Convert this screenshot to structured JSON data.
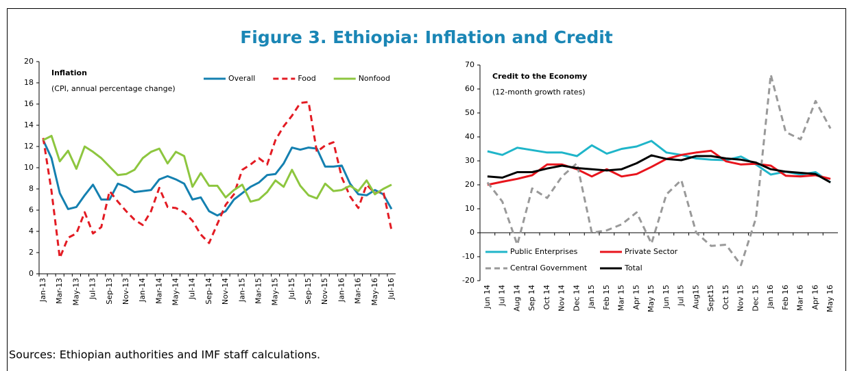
{
  "title": "Figure 3. Ethiopia: Inflation and Credit",
  "source": "Sources: Ethiopian authorities and IMF staff calculations.",
  "chart_data": [
    {
      "type": "line",
      "title": "Inflation",
      "subtitle": "(CPI, annual percentage change)",
      "categories": [
        "Jan-13",
        null,
        "Mar-13",
        null,
        "May-13",
        null,
        "Jul-13",
        null,
        "Sep-13",
        null,
        "Nov-13",
        null,
        "Jan-14",
        null,
        "Mar-14",
        null,
        "May-14",
        null,
        "Jul-14",
        null,
        "Sep-14",
        null,
        "Nov-14",
        null,
        "Jan-15",
        null,
        "Mar-15",
        null,
        "May-15",
        null,
        "Jul-15",
        null,
        "Sep-15",
        null,
        "Nov-15",
        null,
        "Jan-16",
        null,
        "Mar-16",
        null,
        "May-16",
        null,
        "Jul-16"
      ],
      "series": [
        {
          "name": "Overall",
          "color": "#1480b0",
          "dashed": false,
          "values": [
            12.6,
            10.9,
            7.6,
            6.1,
            6.3,
            7.4,
            8.4,
            7.0,
            7.0,
            8.5,
            8.2,
            7.7,
            7.8,
            7.9,
            8.9,
            9.2,
            8.9,
            8.5,
            7.0,
            7.2,
            5.9,
            5.5,
            5.9,
            7.0,
            7.6,
            8.2,
            8.6,
            9.3,
            9.4,
            10.4,
            11.9,
            11.7,
            11.9,
            11.8,
            10.1,
            10.1,
            10.2,
            8.5,
            7.5,
            7.4,
            7.9,
            7.5,
            6.1
          ]
        },
        {
          "name": "Food",
          "color": "#e31b23",
          "dashed": true,
          "values": [
            12.8,
            7.8,
            1.5,
            3.4,
            3.8,
            5.8,
            3.8,
            4.4,
            7.8,
            6.8,
            5.9,
            5.1,
            4.6,
            5.9,
            8.1,
            6.3,
            6.2,
            5.8,
            5.0,
            3.7,
            2.9,
            4.7,
            6.5,
            7.5,
            9.8,
            10.3,
            10.9,
            10.3,
            12.6,
            13.9,
            14.9,
            16.1,
            16.2,
            11.5,
            12.1,
            12.4,
            9.1,
            7.3,
            6.2,
            8.4,
            7.6,
            7.8,
            4.1
          ]
        },
        {
          "name": "Nonfood",
          "color": "#8dc63f",
          "dashed": false,
          "values": [
            12.6,
            13.0,
            10.6,
            11.6,
            9.9,
            12.0,
            11.5,
            10.9,
            10.1,
            9.3,
            9.4,
            9.8,
            10.9,
            11.5,
            11.8,
            10.4,
            11.5,
            11.1,
            8.2,
            9.5,
            8.3,
            8.3,
            7.2,
            7.9,
            8.4,
            6.8,
            7.0,
            7.7,
            8.8,
            8.2,
            9.8,
            8.3,
            7.4,
            7.1,
            8.5,
            7.8,
            7.9,
            8.3,
            7.8,
            8.8,
            7.5,
            8.0,
            8.4
          ]
        }
      ],
      "ylim": [
        0,
        20
      ],
      "yticks": [
        0,
        2,
        4,
        6,
        8,
        10,
        12,
        14,
        16,
        18,
        20
      ],
      "grid": false,
      "legend": "top"
    },
    {
      "type": "line",
      "title": "Credit to the Economy",
      "subtitle": "(12-month growth rates)",
      "categories": [
        "Jun 14",
        "Jul 14",
        "Aug 14",
        "Sep 14",
        "Oct 14",
        "Nov 14",
        "Dec 14",
        "Jan 15",
        "Feb 15",
        "Mar 15",
        "Apr 15",
        "May 15",
        "Jun 15",
        "Jul 15",
        "Aug15",
        "Sept15",
        "Oct 15",
        "Nov 15",
        "Dec 15",
        "Jan 16",
        "Feb 16",
        "Mar 16",
        "Apr 16",
        "May 16"
      ],
      "series": [
        {
          "name": "Public Enterprises",
          "color": "#1fb5c9",
          "dashed": false,
          "values": [
            34,
            32.5,
            35.5,
            34.5,
            33.5,
            33.5,
            32,
            36.5,
            33,
            35,
            36,
            38.3,
            33.5,
            32.5,
            31,
            30.5,
            30.3,
            31.8,
            28.5,
            24.3,
            25.5,
            24.3,
            25.3,
            21
          ]
        },
        {
          "name": "Private Sector",
          "color": "#e8141c",
          "dashed": false,
          "values": [
            20,
            21.3,
            22.5,
            24,
            28.5,
            28.5,
            26.5,
            23.5,
            26.5,
            23.5,
            24.5,
            27.5,
            30.8,
            32.5,
            33.5,
            34.2,
            29.8,
            28.5,
            28.8,
            28,
            23.8,
            23.5,
            24,
            22.5
          ]
        },
        {
          "name": "Central Government",
          "color": "#999999",
          "dashed": true,
          "values": [
            21,
            13,
            -5,
            18.5,
            14.5,
            23.5,
            29,
            0,
            1,
            3.5,
            8.5,
            -4.5,
            16,
            22,
            0,
            -5.5,
            -5,
            -13.5,
            6,
            66,
            42,
            39,
            55,
            43.5
          ]
        },
        {
          "name": "Total",
          "color": "#000000",
          "dashed": false,
          "values": [
            23.5,
            23,
            25.3,
            25.3,
            26.8,
            28,
            27,
            26.5,
            26,
            26.5,
            29,
            32.3,
            30.8,
            30.3,
            32,
            32,
            31,
            30.5,
            29.3,
            26.5,
            25.5,
            25,
            24.5,
            21
          ]
        }
      ],
      "ylim": [
        -20,
        70
      ],
      "yticks": [
        -20,
        -10,
        0,
        10,
        20,
        30,
        40,
        50,
        60,
        70
      ],
      "grid": false,
      "legend": "bottom-left"
    }
  ]
}
